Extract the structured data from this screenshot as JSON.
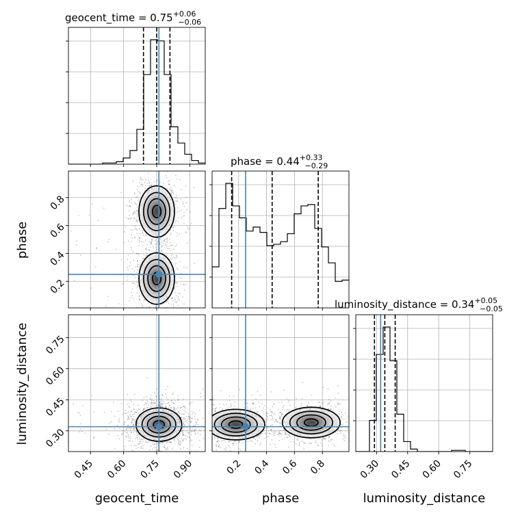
{
  "chart_data": {
    "type": "corner",
    "parameters": [
      "geocent_time",
      "phase",
      "luminosity_distance"
    ],
    "axis_labels": [
      "geocent_time",
      "phase",
      "luminosity_distance"
    ],
    "ranges": {
      "geocent_time": [
        0.35,
        0.97
      ],
      "phase": [
        0.01,
        0.99
      ],
      "luminosity_distance": [
        0.2,
        0.86
      ]
    },
    "ticks": {
      "geocent_time": {
        "values": [
          0.45,
          0.6,
          0.75,
          0.9
        ],
        "labels": [
          "0.45",
          "0.60",
          "0.75",
          "0.90"
        ]
      },
      "phase": {
        "values": [
          0.2,
          0.4,
          0.6,
          0.8
        ],
        "labels": [
          "0.2",
          "0.4",
          "0.6",
          "0.8"
        ]
      },
      "luminosity_distance": {
        "values": [
          0.3,
          0.45,
          0.6,
          0.75
        ],
        "labels": [
          "0.30",
          "0.45",
          "0.60",
          "0.75"
        ]
      }
    },
    "truths": {
      "geocent_time": 0.76,
      "phase": 0.25,
      "luminosity_distance": 0.32
    },
    "titles": [
      {
        "param": "geocent_time",
        "label": "geocent_time = 0.75",
        "plus": "+0.06",
        "minus": "−0.06"
      },
      {
        "param": "phase",
        "label": "phase = 0.44",
        "plus": "+0.33",
        "minus": "−0.29"
      },
      {
        "param": "luminosity_distance",
        "label": "luminosity_distance = 0.34",
        "plus": "+0.05",
        "minus": "−0.05"
      }
    ],
    "quantiles": {
      "geocent_time": [
        0.69,
        0.75,
        0.81
      ],
      "phase": [
        0.15,
        0.44,
        0.77
      ],
      "luminosity_distance": [
        0.29,
        0.34,
        0.39
      ]
    },
    "marginals": {
      "geocent_time": {
        "edges": [
          0.35,
          0.381,
          0.412,
          0.443,
          0.474,
          0.505,
          0.536,
          0.567,
          0.598,
          0.629,
          0.66,
          0.691,
          0.722,
          0.753,
          0.784,
          0.815,
          0.846,
          0.877,
          0.908,
          0.939,
          0.97
        ],
        "counts": [
          0,
          0,
          0,
          0,
          0,
          1,
          1,
          2,
          5,
          11,
          28,
          72,
          100,
          99,
          72,
          30,
          17,
          8,
          3,
          1
        ]
      },
      "phase": {
        "edges": [
          0.01,
          0.059,
          0.108,
          0.157,
          0.206,
          0.255,
          0.304,
          0.353,
          0.402,
          0.451,
          0.5,
          0.549,
          0.598,
          0.647,
          0.696,
          0.745,
          0.794,
          0.843,
          0.892,
          0.941,
          0.99
        ],
        "counts": [
          31,
          75,
          94,
          77,
          68,
          58,
          61,
          57,
          47,
          48,
          50,
          56,
          71,
          77,
          78,
          60,
          46,
          34,
          20,
          21
        ]
      },
      "luminosity_distance": {
        "edges": [
          0.2,
          0.233,
          0.266,
          0.299,
          0.332,
          0.365,
          0.398,
          0.431,
          0.464,
          0.497,
          0.53,
          0.563,
          0.596,
          0.629,
          0.662,
          0.695,
          0.728,
          0.761,
          0.794,
          0.827,
          0.86
        ],
        "counts": [
          0,
          0,
          25,
          78,
          100,
          73,
          30,
          8,
          2,
          0,
          0,
          0,
          0,
          0,
          1,
          1,
          0,
          0,
          0,
          0
        ]
      }
    }
  }
}
